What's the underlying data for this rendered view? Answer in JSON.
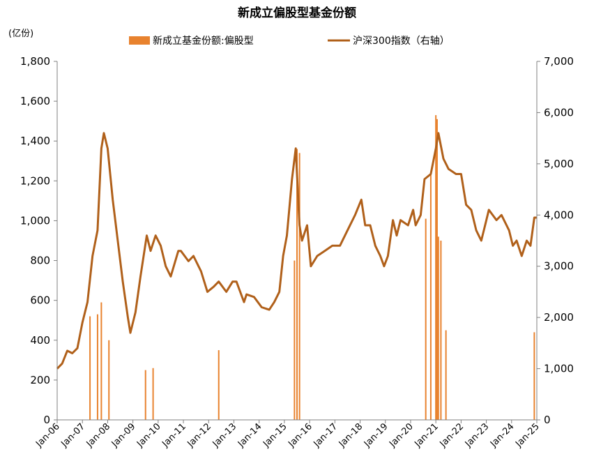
{
  "chart_data": {
    "type": "bar+line",
    "title": "新成立偏股型基金份额",
    "left_unit": "(亿份)",
    "legend": [
      {
        "name": "新成立基金份额:偏股型",
        "color": "#E8822E",
        "kind": "bar"
      },
      {
        "name": "沪深300指数（右轴）",
        "color": "#B0601A",
        "kind": "line"
      }
    ],
    "legend_position": "top",
    "grid": false,
    "left_axis": {
      "min": 0,
      "max": 1800,
      "ticks": [
        "0",
        "200",
        "400",
        "600",
        "800",
        "1,000",
        "1,200",
        "1,400",
        "1,600",
        "1,800"
      ]
    },
    "right_axis": {
      "min": 0,
      "max": 7000,
      "ticks": [
        "0",
        "1,000",
        "2,000",
        "3,000",
        "4,000",
        "5,000",
        "6,000",
        "7,000"
      ]
    },
    "x_ticks": [
      "Jan-06",
      "Jan-07",
      "Jan-08",
      "Jan-09",
      "Jan-10",
      "Jan-11",
      "Jan-12",
      "Jan-13",
      "Jan-14",
      "Jan-15",
      "Jan-16",
      "Jan-17",
      "Jan-18",
      "Jan-19",
      "Jan-20",
      "Jan-21",
      "Jan-22",
      "Jan-23",
      "Jan-24",
      "Jan-25"
    ],
    "x_range": [
      2006.0,
      2025.0
    ],
    "index_series": {
      "name": "沪深300指数（右轴）",
      "x": [
        2006.0,
        2006.2,
        2006.4,
        2006.6,
        2006.8,
        2007.0,
        2007.2,
        2007.4,
        2007.6,
        2007.75,
        2007.85,
        2008.0,
        2008.2,
        2008.4,
        2008.6,
        2008.8,
        2008.9,
        2009.1,
        2009.3,
        2009.55,
        2009.7,
        2009.9,
        2010.1,
        2010.3,
        2010.5,
        2010.8,
        2010.9,
        2011.2,
        2011.4,
        2011.7,
        2011.95,
        2012.2,
        2012.4,
        2012.7,
        2012.95,
        2013.1,
        2013.4,
        2013.5,
        2013.8,
        2014.1,
        2014.4,
        2014.6,
        2014.8,
        2014.95,
        2015.1,
        2015.3,
        2015.45,
        2015.6,
        2015.7,
        2015.9,
        2016.05,
        2016.3,
        2016.6,
        2016.9,
        2017.2,
        2017.5,
        2017.8,
        2018.05,
        2018.2,
        2018.4,
        2018.6,
        2018.8,
        2018.95,
        2019.1,
        2019.3,
        2019.45,
        2019.6,
        2019.9,
        2020.1,
        2020.2,
        2020.4,
        2020.55,
        2020.8,
        2021.0,
        2021.1,
        2021.3,
        2021.5,
        2021.8,
        2022.0,
        2022.2,
        2022.4,
        2022.6,
        2022.8,
        2022.95,
        2023.1,
        2023.4,
        2023.6,
        2023.9,
        2024.05,
        2024.2,
        2024.4,
        2024.6,
        2024.75,
        2024.9,
        2025.0
      ],
      "y": [
        1000,
        1100,
        1350,
        1300,
        1400,
        1900,
        2300,
        3200,
        3700,
        5300,
        5600,
        5300,
        4300,
        3500,
        2700,
        2000,
        1700,
        2100,
        2800,
        3600,
        3300,
        3600,
        3400,
        3000,
        2800,
        3300,
        3300,
        3100,
        3200,
        2900,
        2500,
        2600,
        2700,
        2500,
        2700,
        2700,
        2300,
        2450,
        2400,
        2200,
        2150,
        2300,
        2500,
        3200,
        3600,
        4700,
        5300,
        3800,
        3500,
        3800,
        3000,
        3200,
        3300,
        3400,
        3400,
        3700,
        4000,
        4300,
        3800,
        3800,
        3400,
        3200,
        3000,
        3200,
        3900,
        3600,
        3900,
        3800,
        4100,
        3800,
        4000,
        4700,
        4800,
        5300,
        5600,
        5100,
        4900,
        4800,
        4800,
        4200,
        4100,
        3700,
        3500,
        3800,
        4100,
        3900,
        4000,
        3700,
        3400,
        3500,
        3200,
        3500,
        3400,
        3950,
        3950
      ]
    },
    "bar_series": {
      "name": "新成立基金份额:偏股型",
      "note": "estimated selected spikes",
      "x": [
        2007.3,
        2007.6,
        2007.75,
        2008.05,
        2009.5,
        2009.8,
        2012.4,
        2015.4,
        2015.5,
        2015.6,
        2020.6,
        2020.8,
        2021.0,
        2021.05,
        2021.1,
        2021.2,
        2021.4,
        2024.9
      ],
      "y": [
        520,
        530,
        590,
        400,
        250,
        260,
        350,
        800,
        1360,
        1340,
        1010,
        1240,
        1530,
        1510,
        920,
        900,
        450,
        440
      ]
    }
  }
}
